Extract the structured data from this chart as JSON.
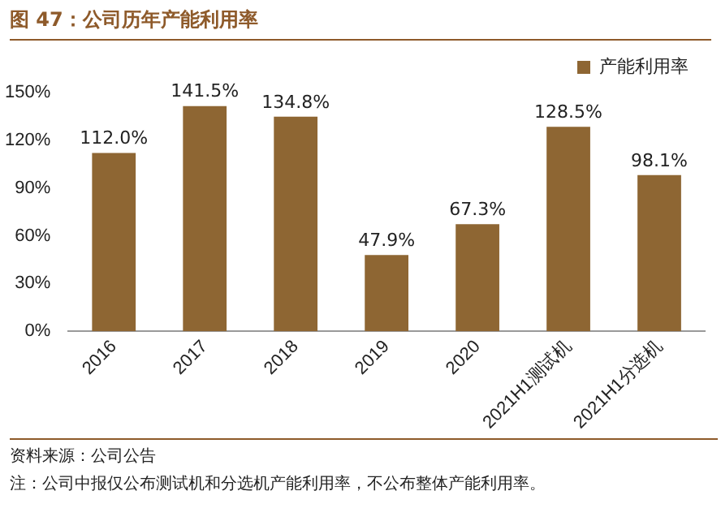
{
  "chart_data": {
    "type": "bar",
    "title": "图 47：公司历年产能利用率",
    "categories": [
      "2016",
      "2017",
      "2018",
      "2019",
      "2020",
      "2021H1测试机",
      "2021H1分选机"
    ],
    "series": [
      {
        "name": "产能利用率",
        "color": "#8e6633",
        "values": [
          112.0,
          141.5,
          134.8,
          47.9,
          67.3,
          128.5,
          98.1
        ],
        "value_labels": [
          "112.0%",
          "141.5%",
          "134.8%",
          "47.9%",
          "67.3%",
          "128.5%",
          "98.1%"
        ]
      }
    ],
    "ylim": [
      0,
      150
    ],
    "yticks": [
      {
        "value": 0,
        "label": "0%"
      },
      {
        "value": 30,
        "label": "30%"
      },
      {
        "value": 60,
        "label": "60%"
      },
      {
        "value": 90,
        "label": "90%"
      },
      {
        "value": 120,
        "label": "120%"
      },
      {
        "value": 150,
        "label": "150%"
      }
    ],
    "grid": false,
    "legend": "top right",
    "annotations": [
      "资料来源：公司公告",
      "注：公司中报仅公布测试机和分选机产能利用率，不公布整体产能利用率。"
    ]
  }
}
